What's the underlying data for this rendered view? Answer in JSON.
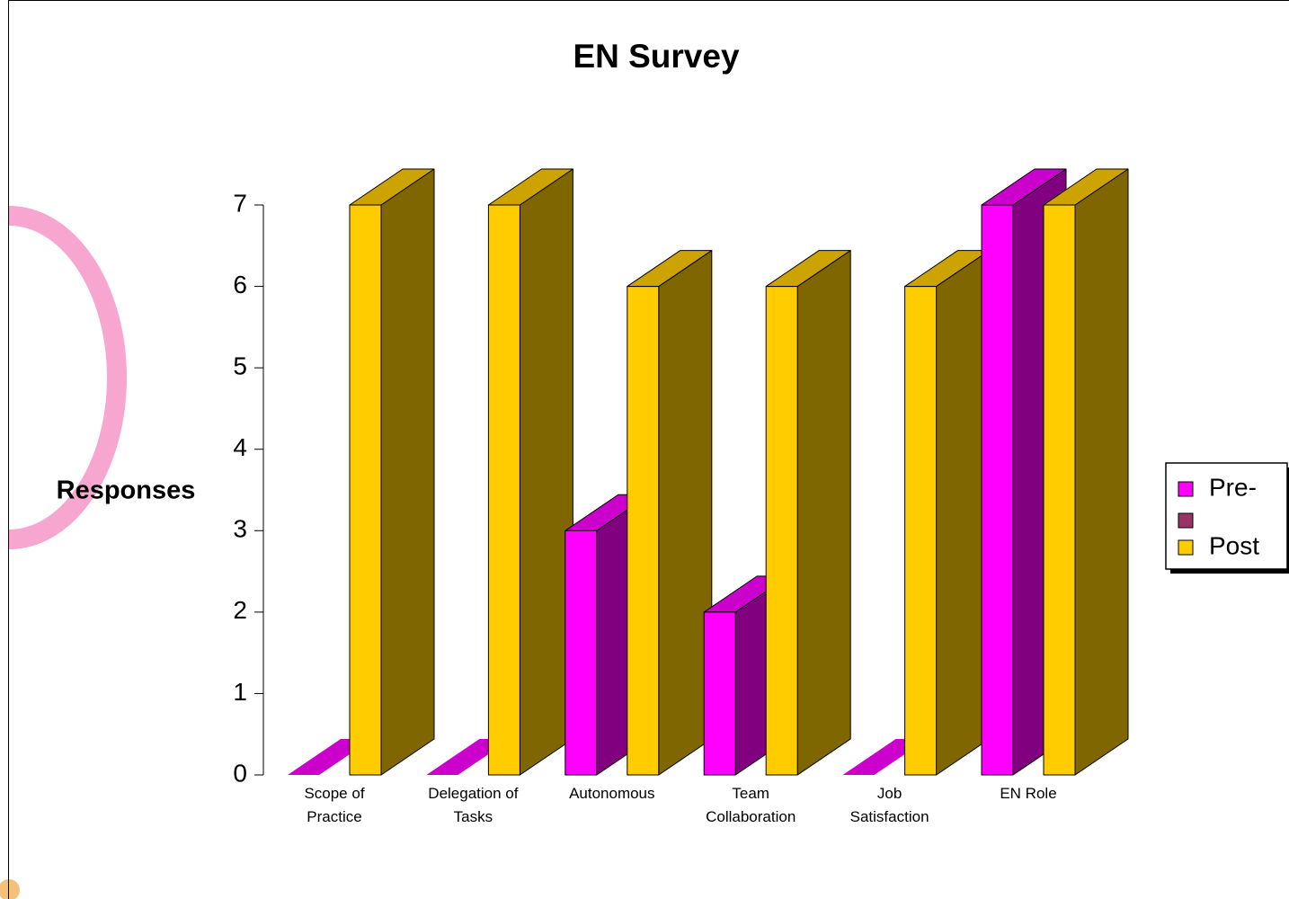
{
  "chart_data": {
    "type": "bar3d",
    "title": "EN Survey",
    "y_label": "Responses",
    "categories": [
      "Scope of\nPractice",
      "Delegation of\nTasks",
      "Autonomous",
      "Team\nCollaboration",
      "Job\nSatisfaction",
      "EN Role"
    ],
    "series": [
      {
        "name": "Pre-",
        "color": "#ff00ff",
        "values": [
          0,
          0,
          3,
          2,
          0,
          7
        ]
      },
      {
        "name": "Post",
        "color": "#ffcc00",
        "values": [
          7,
          7,
          6,
          6,
          6,
          7
        ]
      }
    ],
    "ylim": [
      0,
      7
    ],
    "yticks": [
      0,
      1,
      2,
      3,
      4,
      5,
      6,
      7
    ],
    "grid": false,
    "legend": "right"
  }
}
